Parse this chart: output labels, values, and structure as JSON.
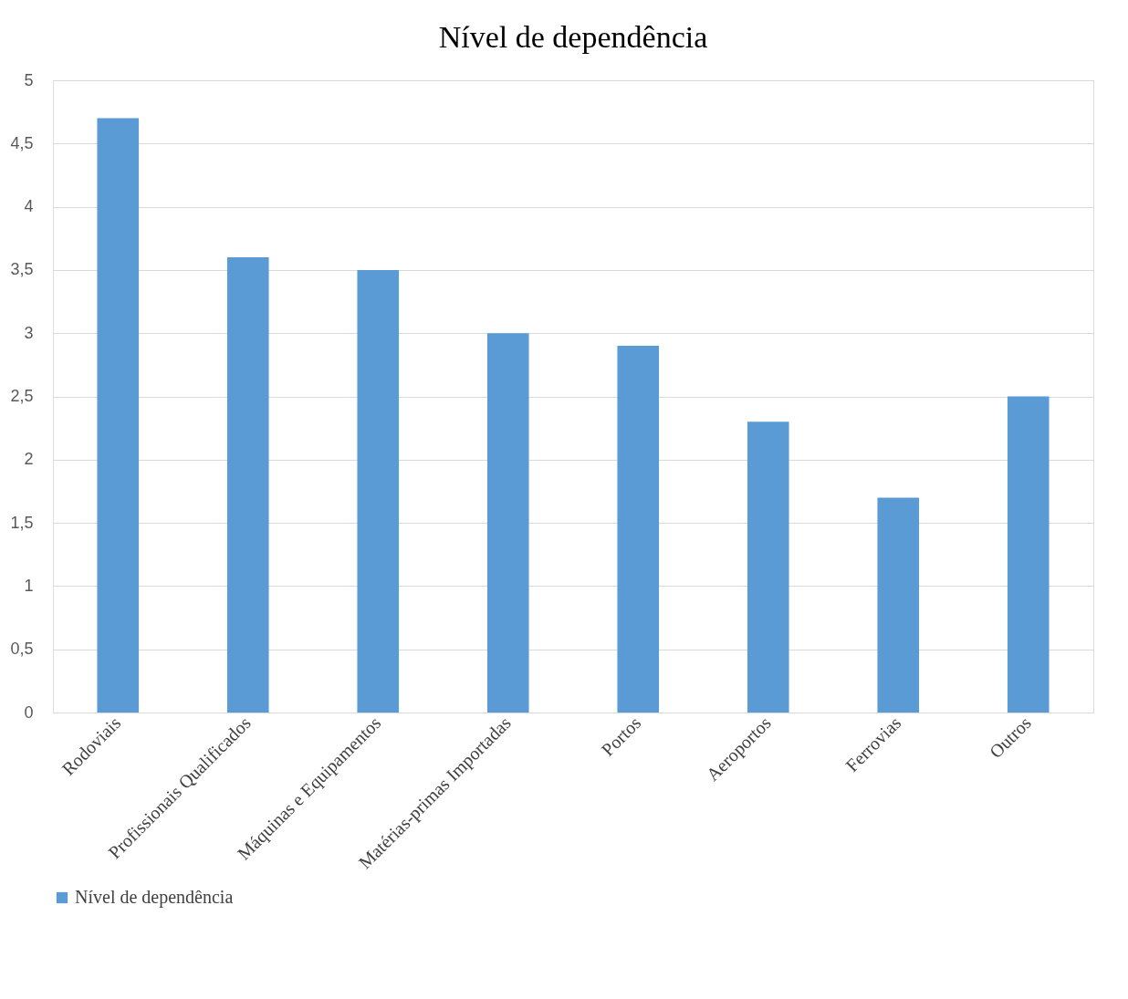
{
  "chart_data": {
    "type": "bar",
    "title": "Nível de dependência",
    "categories": [
      "Rodoviais",
      "Profissionais Qualificados",
      "Máquinas e Equipamentos",
      "Matérias-primas Importadas",
      "Portos",
      "Aeroportos",
      "Ferrovias",
      "Outros"
    ],
    "series": [
      {
        "name": "Nível de dependência",
        "color": "#5b9bd5",
        "values": [
          4.7,
          3.6,
          3.5,
          3.0,
          2.9,
          2.3,
          1.7,
          2.5
        ]
      }
    ],
    "ylim": [
      0,
      5
    ],
    "yticks": [
      0,
      {
        "value": 0.5,
        "label": "0,5"
      },
      1,
      {
        "value": 1.5,
        "label": "1,5"
      },
      2,
      {
        "value": 2.5,
        "label": "2,5"
      },
      3,
      {
        "value": 3.5,
        "label": "3,5"
      },
      4,
      {
        "value": 4.5,
        "label": "4,5"
      },
      5
    ],
    "grid": "y",
    "legend": "bottom"
  }
}
